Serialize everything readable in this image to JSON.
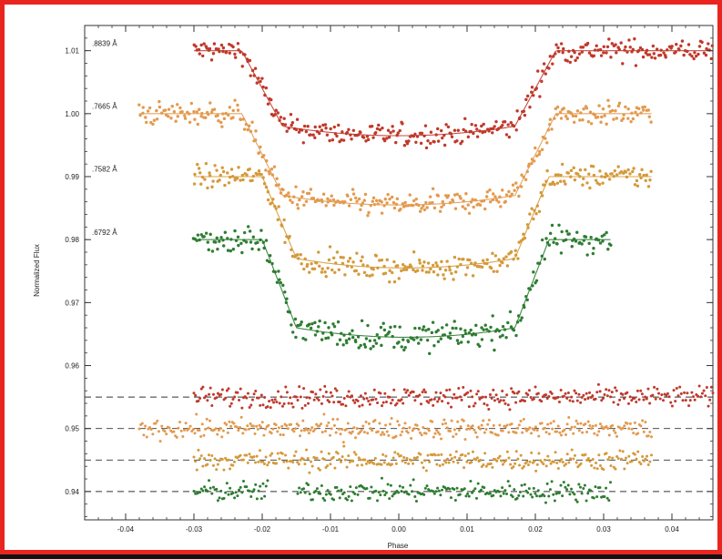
{
  "chart_data": {
    "type": "scatter",
    "xlabel": "Phase",
    "ylabel": "Normalized Flux",
    "xlim": [
      -0.046,
      0.046
    ],
    "ylim": [
      0.9355,
      1.014
    ],
    "x_ticks": [
      -0.04,
      -0.03,
      -0.02,
      -0.01,
      0.0,
      0.01,
      0.02,
      0.03,
      0.04
    ],
    "x_tick_labels": [
      "-0.04",
      "-0.03",
      "-0.02",
      "-0.01",
      "0.00",
      "0.01",
      "0.02",
      "0.03",
      "0.04"
    ],
    "y_ticks": [
      0.94,
      0.95,
      0.96,
      0.97,
      0.98,
      0.99,
      1.0,
      1.01
    ],
    "y_tick_labels": [
      "0.94",
      "0.95",
      "0.96",
      "0.97",
      "0.98",
      "0.99",
      "1.00",
      "1.01"
    ],
    "grid": false,
    "series": [
      {
        "label": ".8839 Å",
        "color": "#c0392b",
        "baseline": 1.01,
        "depth": 0.012,
        "phase_range": [
          -0.03,
          0.046
        ],
        "ingress": [
          -0.023,
          -0.017
        ],
        "egress": [
          0.017,
          0.023
        ],
        "scatter": 0.0009
      },
      {
        "label": ".7665 Å",
        "color": "#e39a4f",
        "baseline": 1.0,
        "depth": 0.013,
        "phase_range": [
          -0.038,
          0.037
        ],
        "ingress": [
          -0.023,
          -0.017
        ],
        "egress": [
          0.017,
          0.023
        ],
        "scatter": 0.0009
      },
      {
        "label": ".7582 Å",
        "color": "#d49a3a",
        "baseline": 0.99,
        "depth": 0.013,
        "phase_range": [
          -0.03,
          0.037
        ],
        "ingress": [
          -0.02,
          -0.015
        ],
        "egress": [
          0.017,
          0.022
        ],
        "scatter": 0.0009
      },
      {
        "label": ".6792 Å",
        "color": "#2e7d32",
        "baseline": 0.98,
        "depth": 0.014,
        "phase_range": [
          -0.03,
          0.031
        ],
        "ingress": [
          -0.02,
          -0.015
        ],
        "egress": [
          0.017,
          0.022
        ],
        "scatter": 0.0011
      }
    ],
    "residuals": [
      {
        "color": "#c0392b",
        "offset": 0.955,
        "phase_range": [
          -0.03,
          0.046
        ]
      },
      {
        "color": "#e39a4f",
        "offset": 0.95,
        "phase_range": [
          -0.038,
          0.037
        ]
      },
      {
        "color": "#d49a3a",
        "offset": 0.945,
        "phase_range": [
          -0.03,
          0.037
        ]
      },
      {
        "color": "#2e7d32",
        "offset": 0.94,
        "phase_range": [
          -0.03,
          0.031
        ]
      }
    ],
    "residual_scatter": 0.0008
  }
}
